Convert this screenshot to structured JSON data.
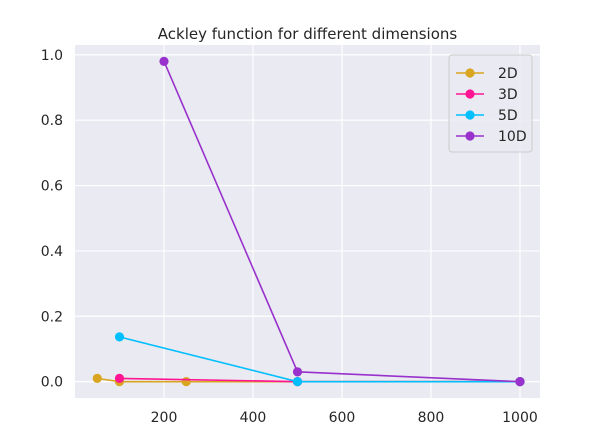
{
  "chart_data": {
    "type": "line",
    "title": "Ackley function for different dimensions",
    "xlabel": "",
    "ylabel": "",
    "xlim": [
      0,
      1045
    ],
    "ylim": [
      -0.05,
      1.03
    ],
    "xticks": [
      200,
      400,
      600,
      800,
      1000
    ],
    "yticks": [
      0.0,
      0.2,
      0.4,
      0.6,
      0.8,
      1.0
    ],
    "ytick_labels": [
      "0.0",
      "0.2",
      "0.4",
      "0.6",
      "0.8",
      "1.0"
    ],
    "grid": true,
    "legend_position": "top-right",
    "series": [
      {
        "name": "2D",
        "color": "#DAA520",
        "x": [
          50,
          100,
          250,
          500,
          1000
        ],
        "y": [
          0.01,
          0.0,
          0.0,
          0.0,
          0.0
        ]
      },
      {
        "name": "3D",
        "color": "#FF1493",
        "x": [
          100,
          500,
          1000
        ],
        "y": [
          0.01,
          0.0,
          0.0
        ]
      },
      {
        "name": "5D",
        "color": "#00BFFF",
        "x": [
          100,
          500,
          1000
        ],
        "y": [
          0.137,
          0.0,
          0.0
        ]
      },
      {
        "name": "10D",
        "color": "#9932CC",
        "x": [
          200,
          500,
          1000
        ],
        "y": [
          0.98,
          0.03,
          0.0
        ]
      }
    ]
  }
}
